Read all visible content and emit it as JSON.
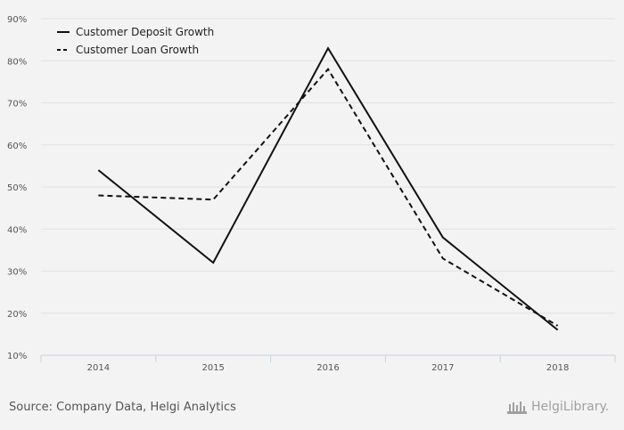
{
  "chart_data": {
    "type": "line",
    "categories": [
      "2014",
      "2015",
      "2016",
      "2017",
      "2018"
    ],
    "series": [
      {
        "name": "Customer Deposit Growth",
        "values": [
          54,
          32,
          83,
          38,
          16
        ],
        "style": "solid",
        "color": "#111111"
      },
      {
        "name": "Customer Loan Growth",
        "values": [
          48,
          47,
          78,
          33,
          17
        ],
        "style": "dashed",
        "color": "#111111"
      }
    ],
    "ylim": [
      10,
      90
    ],
    "yticks": [
      "10%",
      "20%",
      "30%",
      "40%",
      "50%",
      "60%",
      "70%",
      "80%",
      "90%"
    ],
    "grid": true,
    "legend_position": "top-left"
  },
  "footer": {
    "source": "Source: Company Data, Helgi Analytics",
    "logo_text": "HelgiLibrary."
  },
  "colors": {
    "background": "#f3f3f3",
    "grid": "#e2e2e2",
    "axis": "#c8d2dc",
    "tick_text": "#555555"
  }
}
